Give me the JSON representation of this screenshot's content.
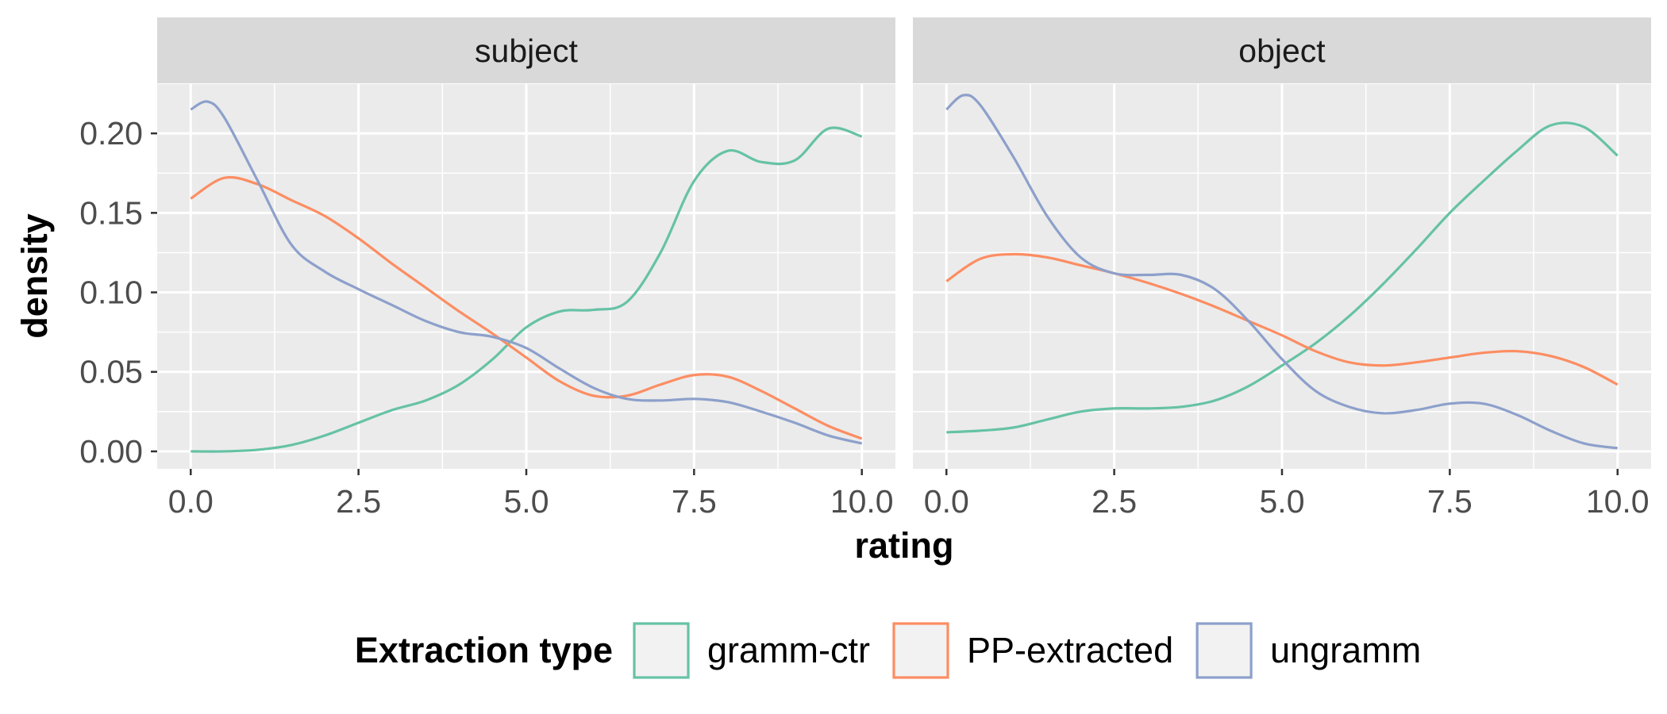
{
  "chart_data": {
    "type": "line",
    "chart_kind": "density",
    "facets": [
      "subject",
      "object"
    ],
    "xlabel": "rating",
    "ylabel": "density",
    "xlim": [
      0,
      10
    ],
    "ylim": [
      0,
      0.22
    ],
    "x_ticks": [
      0.0,
      2.5,
      5.0,
      7.5,
      10.0
    ],
    "x_tick_labels": [
      "0.0",
      "2.5",
      "5.0",
      "7.5",
      "10.0"
    ],
    "y_ticks": [
      0.0,
      0.05,
      0.1,
      0.15,
      0.2
    ],
    "y_tick_labels": [
      "0.00",
      "0.05",
      "0.10",
      "0.15",
      "0.20"
    ],
    "grid": true,
    "legend": {
      "title": "Extraction type",
      "position": "bottom",
      "entries": [
        "gramm-ctr",
        "PP-extracted",
        "ungramm"
      ]
    },
    "colors": {
      "gramm-ctr": "#66c2a5",
      "PP-extracted": "#fc8d62",
      "ungramm": "#8da0cb",
      "panel_bg": "#ebebeb",
      "strip_bg": "#d9d9d9"
    },
    "series": [
      {
        "facet": "subject",
        "name": "gramm-ctr",
        "x": [
          0,
          0.5,
          1,
          1.5,
          2,
          2.5,
          3,
          3.5,
          4,
          4.5,
          5,
          5.5,
          6,
          6.5,
          7,
          7.5,
          8,
          8.5,
          9,
          9.5,
          10
        ],
        "y": [
          0.0,
          0.0,
          0.001,
          0.004,
          0.01,
          0.018,
          0.026,
          0.032,
          0.042,
          0.058,
          0.078,
          0.088,
          0.089,
          0.094,
          0.125,
          0.17,
          0.189,
          0.182,
          0.183,
          0.203,
          0.198
        ]
      },
      {
        "facet": "subject",
        "name": "PP-extracted",
        "x": [
          0,
          0.5,
          1,
          1.5,
          2,
          2.5,
          3,
          3.5,
          4,
          4.5,
          5,
          5.5,
          6,
          6.5,
          7,
          7.5,
          8,
          8.5,
          9,
          9.5,
          10
        ],
        "y": [
          0.159,
          0.172,
          0.168,
          0.158,
          0.148,
          0.134,
          0.118,
          0.103,
          0.088,
          0.074,
          0.059,
          0.044,
          0.035,
          0.035,
          0.042,
          0.048,
          0.047,
          0.038,
          0.027,
          0.016,
          0.008
        ]
      },
      {
        "facet": "subject",
        "name": "ungramm",
        "x": [
          0,
          0.25,
          0.5,
          1,
          1.5,
          2,
          2.5,
          3,
          3.5,
          4,
          4.5,
          5,
          5.5,
          6,
          6.5,
          7,
          7.5,
          8,
          8.5,
          9,
          9.5,
          10
        ],
        "y": [
          0.215,
          0.22,
          0.21,
          0.17,
          0.13,
          0.113,
          0.102,
          0.092,
          0.082,
          0.075,
          0.072,
          0.065,
          0.052,
          0.04,
          0.033,
          0.032,
          0.033,
          0.031,
          0.025,
          0.018,
          0.01,
          0.005
        ]
      },
      {
        "facet": "object",
        "name": "gramm-ctr",
        "x": [
          0,
          0.5,
          1,
          1.5,
          2,
          2.5,
          3,
          3.5,
          4,
          4.5,
          5,
          5.5,
          6,
          6.5,
          7,
          7.5,
          8,
          8.5,
          9,
          9.5,
          10
        ],
        "y": [
          0.012,
          0.013,
          0.015,
          0.02,
          0.025,
          0.027,
          0.027,
          0.028,
          0.032,
          0.041,
          0.054,
          0.068,
          0.085,
          0.105,
          0.127,
          0.15,
          0.17,
          0.189,
          0.205,
          0.204,
          0.186
        ]
      },
      {
        "facet": "object",
        "name": "PP-extracted",
        "x": [
          0,
          0.5,
          1,
          1.5,
          2,
          2.5,
          3,
          3.5,
          4,
          4.5,
          5,
          5.5,
          6,
          6.5,
          7,
          7.5,
          8,
          8.5,
          9,
          9.5,
          10
        ],
        "y": [
          0.107,
          0.121,
          0.124,
          0.122,
          0.117,
          0.112,
          0.106,
          0.099,
          0.091,
          0.082,
          0.073,
          0.063,
          0.056,
          0.054,
          0.056,
          0.059,
          0.062,
          0.063,
          0.06,
          0.053,
          0.042
        ]
      },
      {
        "facet": "object",
        "name": "ungramm",
        "x": [
          0,
          0.25,
          0.5,
          1,
          1.5,
          2,
          2.5,
          3,
          3.5,
          4,
          4.5,
          5,
          5.5,
          6,
          6.5,
          7,
          7.5,
          8,
          8.5,
          9,
          9.5,
          10
        ],
        "y": [
          0.215,
          0.224,
          0.218,
          0.185,
          0.148,
          0.122,
          0.112,
          0.111,
          0.111,
          0.102,
          0.082,
          0.058,
          0.038,
          0.028,
          0.024,
          0.026,
          0.03,
          0.03,
          0.023,
          0.013,
          0.005,
          0.002
        ]
      }
    ]
  }
}
